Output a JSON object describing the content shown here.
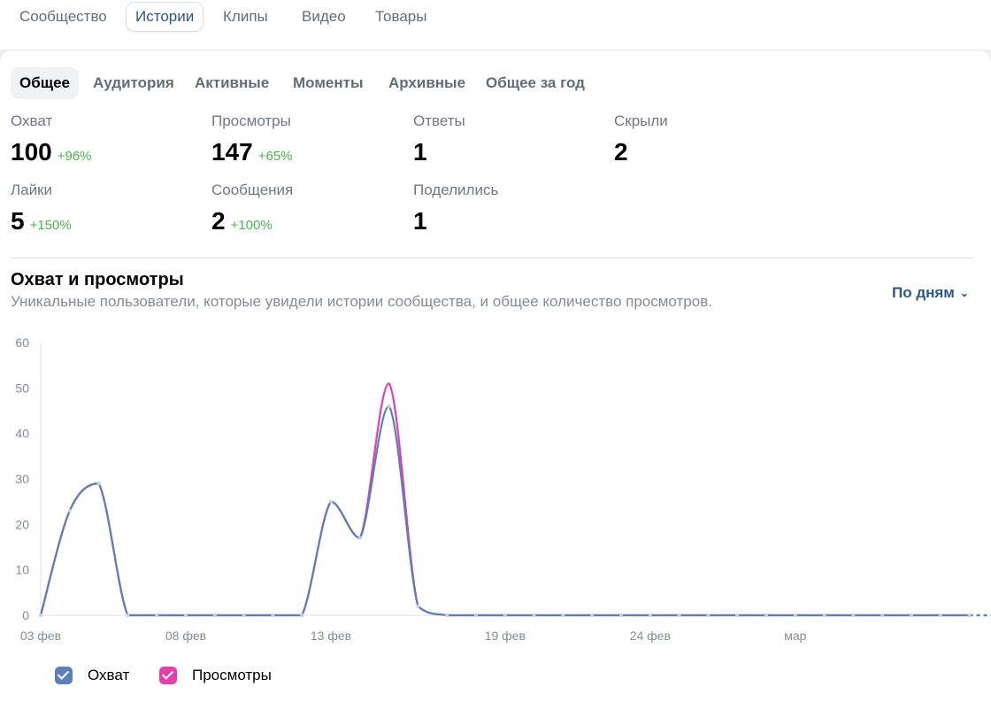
{
  "top_tabs": [
    {
      "label": "Сообщество",
      "active": false
    },
    {
      "label": "Истории",
      "active": true
    },
    {
      "label": "Клипы",
      "active": false
    },
    {
      "label": "Видео",
      "active": false
    },
    {
      "label": "Товары",
      "active": false
    }
  ],
  "sub_tabs": [
    {
      "label": "Общее",
      "active": true
    },
    {
      "label": "Аудитория",
      "active": false
    },
    {
      "label": "Активные",
      "active": false
    },
    {
      "label": "Моменты",
      "active": false
    },
    {
      "label": "Архивные",
      "active": false
    },
    {
      "label": "Общее за год",
      "active": false
    }
  ],
  "stats": [
    {
      "label": "Охват",
      "value": "100",
      "delta": "+96%"
    },
    {
      "label": "Просмотры",
      "value": "147",
      "delta": "+65%"
    },
    {
      "label": "Ответы",
      "value": "1",
      "delta": ""
    },
    {
      "label": "Скрыли",
      "value": "2",
      "delta": ""
    },
    {
      "label": "Лайки",
      "value": "5",
      "delta": "+150%"
    },
    {
      "label": "Сообщения",
      "value": "2",
      "delta": "+100%"
    },
    {
      "label": "Поделились",
      "value": "1",
      "delta": ""
    }
  ],
  "chart_section": {
    "title": "Охват и просмотры",
    "subtitle": "Уникальные пользователи, которые увидели истории сообщества, и общее количество просмотров.",
    "period_label": "По дням"
  },
  "legend": [
    {
      "label": "Охват",
      "color": "#5b7fb6"
    },
    {
      "label": "Просмотры",
      "color": "#e03fac"
    }
  ],
  "chart_data": {
    "type": "line",
    "x_tick_labels": [
      "03 фев",
      "08 фев",
      "13 фев",
      "19 фев",
      "24 фев",
      "мар"
    ],
    "x_tick_indices": [
      0,
      5,
      10,
      16,
      21,
      26
    ],
    "ylim": [
      0,
      60
    ],
    "yticks": [
      0,
      10,
      20,
      30,
      40,
      50,
      60
    ],
    "grid": false,
    "last_point_dashed": true,
    "series": [
      {
        "name": "Охват",
        "color": "#5b7fb6",
        "values": [
          0,
          23,
          29,
          0,
          0,
          0,
          0,
          0,
          0,
          0,
          25,
          17,
          46,
          2,
          0,
          0,
          0,
          0,
          0,
          0,
          0,
          0,
          0,
          0,
          0,
          0,
          0,
          0,
          0,
          0,
          0,
          0,
          0,
          0
        ]
      },
      {
        "name": "Просмотры",
        "color": "#e03fac",
        "values": [
          0,
          23,
          29,
          0,
          0,
          0,
          0,
          0,
          0,
          0,
          25,
          17,
          51,
          2,
          0,
          0,
          0,
          0,
          0,
          0,
          0,
          0,
          0,
          0,
          0,
          0,
          0,
          0,
          0,
          0,
          0,
          0,
          0,
          0
        ]
      }
    ]
  }
}
